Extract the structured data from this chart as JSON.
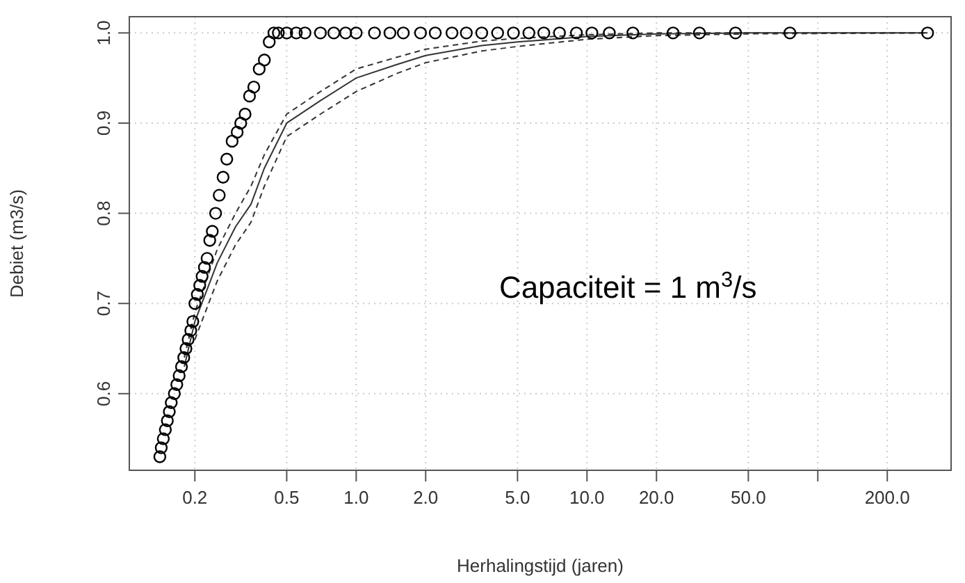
{
  "chart_data": {
    "type": "scatter",
    "xlabel": "Herhalingstijd (jaren)",
    "ylabel": "Debiet (m3/s)",
    "log": "x",
    "grid": true,
    "annotations": [
      "Capaciteit = 1 m$^{3}$/s"
    ],
    "xlim": [
      0.104,
      378
    ],
    "xticks": [
      0.2,
      0.5,
      {
        "value": 1,
        "label": "1.0"
      },
      {
        "value": 2,
        "label": "2.0"
      },
      {
        "value": 5,
        "label": "5.0"
      },
      {
        "value": 10,
        "label": "10.0"
      },
      {
        "value": 20,
        "label": "20.0"
      },
      {
        "value": 50,
        "label": "50.0"
      },
      {
        "value": 100,
        "label": null
      },
      {
        "value": 200,
        "label": "200.0"
      }
    ],
    "ylim": [
      0.515,
      1.018
    ],
    "yticks": [
      0.6,
      0.7,
      0.8,
      0.9,
      {
        "value": 1,
        "label": "1.0"
      }
    ],
    "series": [
      {
        "marker": "circle",
        "color": "#000000",
        "x": [
          0.141,
          0.143,
          0.146,
          0.149,
          0.152,
          0.155,
          0.158,
          0.163,
          0.167,
          0.171,
          0.175,
          0.179,
          0.183,
          0.187,
          0.192,
          0.196,
          0.2,
          0.205,
          0.21,
          0.215,
          0.22,
          0.226,
          0.232,
          0.238,
          0.246,
          0.255,
          0.265,
          0.275,
          0.29,
          0.305,
          0.316,
          0.33,
          0.345,
          0.36,
          0.38,
          0.4,
          0.42,
          0.44,
          0.46,
          0.5,
          0.55,
          0.6,
          0.7,
          0.8,
          0.9,
          1.0,
          1.2,
          1.4,
          1.6,
          1.9,
          2.2,
          2.6,
          3.0,
          3.5,
          4.1,
          4.8,
          5.6,
          6.5,
          7.6,
          9,
          10.5,
          12.5,
          15.8,
          23.6,
          30.7,
          44,
          75.7,
          299
        ],
        "values": [
          0.53,
          0.54,
          0.55,
          0.56,
          0.57,
          0.58,
          0.59,
          0.6,
          0.61,
          0.62,
          0.63,
          0.64,
          0.65,
          0.66,
          0.67,
          0.68,
          0.7,
          0.71,
          0.72,
          0.73,
          0.74,
          0.75,
          0.77,
          0.78,
          0.8,
          0.82,
          0.84,
          0.86,
          0.88,
          0.89,
          0.9,
          0.91,
          0.93,
          0.94,
          0.96,
          0.97,
          0.99,
          1,
          1,
          1,
          1,
          1,
          1,
          1,
          1,
          1,
          1,
          1,
          1,
          1,
          1,
          1,
          1,
          1,
          1,
          1,
          1,
          1,
          1,
          1,
          1,
          1,
          1,
          1,
          1,
          1,
          1,
          1
        ]
      },
      {
        "type": "line",
        "line_style": "solid",
        "color": "#333333",
        "x": [
          0.18,
          0.2,
          0.25,
          0.3,
          0.35,
          0.4,
          0.5,
          0.7,
          1,
          1.5,
          2,
          3.5,
          5,
          10,
          20,
          50,
          299
        ],
        "values": [
          0.63,
          0.68,
          0.745,
          0.785,
          0.81,
          0.85,
          0.9,
          0.925,
          0.95,
          0.965,
          0.975,
          0.986,
          0.99,
          0.996,
          0.999,
          1,
          1
        ]
      },
      {
        "type": "line",
        "line_style": "dashed",
        "color": "#333333",
        "x": [
          0.18,
          0.2,
          0.25,
          0.3,
          0.35,
          0.4,
          0.5,
          0.7,
          1,
          1.5,
          2,
          3.5,
          5,
          10,
          20,
          50,
          299
        ],
        "values": [
          0.64,
          0.69,
          0.76,
          0.8,
          0.83,
          0.865,
          0.91,
          0.935,
          0.96,
          0.973,
          0.982,
          0.991,
          0.994,
          0.998,
          1,
          1,
          1
        ]
      },
      {
        "type": "line",
        "line_style": "dashed",
        "color": "#333333",
        "x": [
          0.2,
          0.25,
          0.3,
          0.35,
          0.4,
          0.5,
          0.7,
          1,
          1.5,
          2,
          3.5,
          5,
          10,
          20,
          50,
          299
        ],
        "values": [
          0.66,
          0.725,
          0.765,
          0.79,
          0.83,
          0.885,
          0.91,
          0.935,
          0.955,
          0.967,
          0.98,
          0.985,
          0.993,
          0.997,
          0.999,
          1
        ]
      }
    ]
  }
}
